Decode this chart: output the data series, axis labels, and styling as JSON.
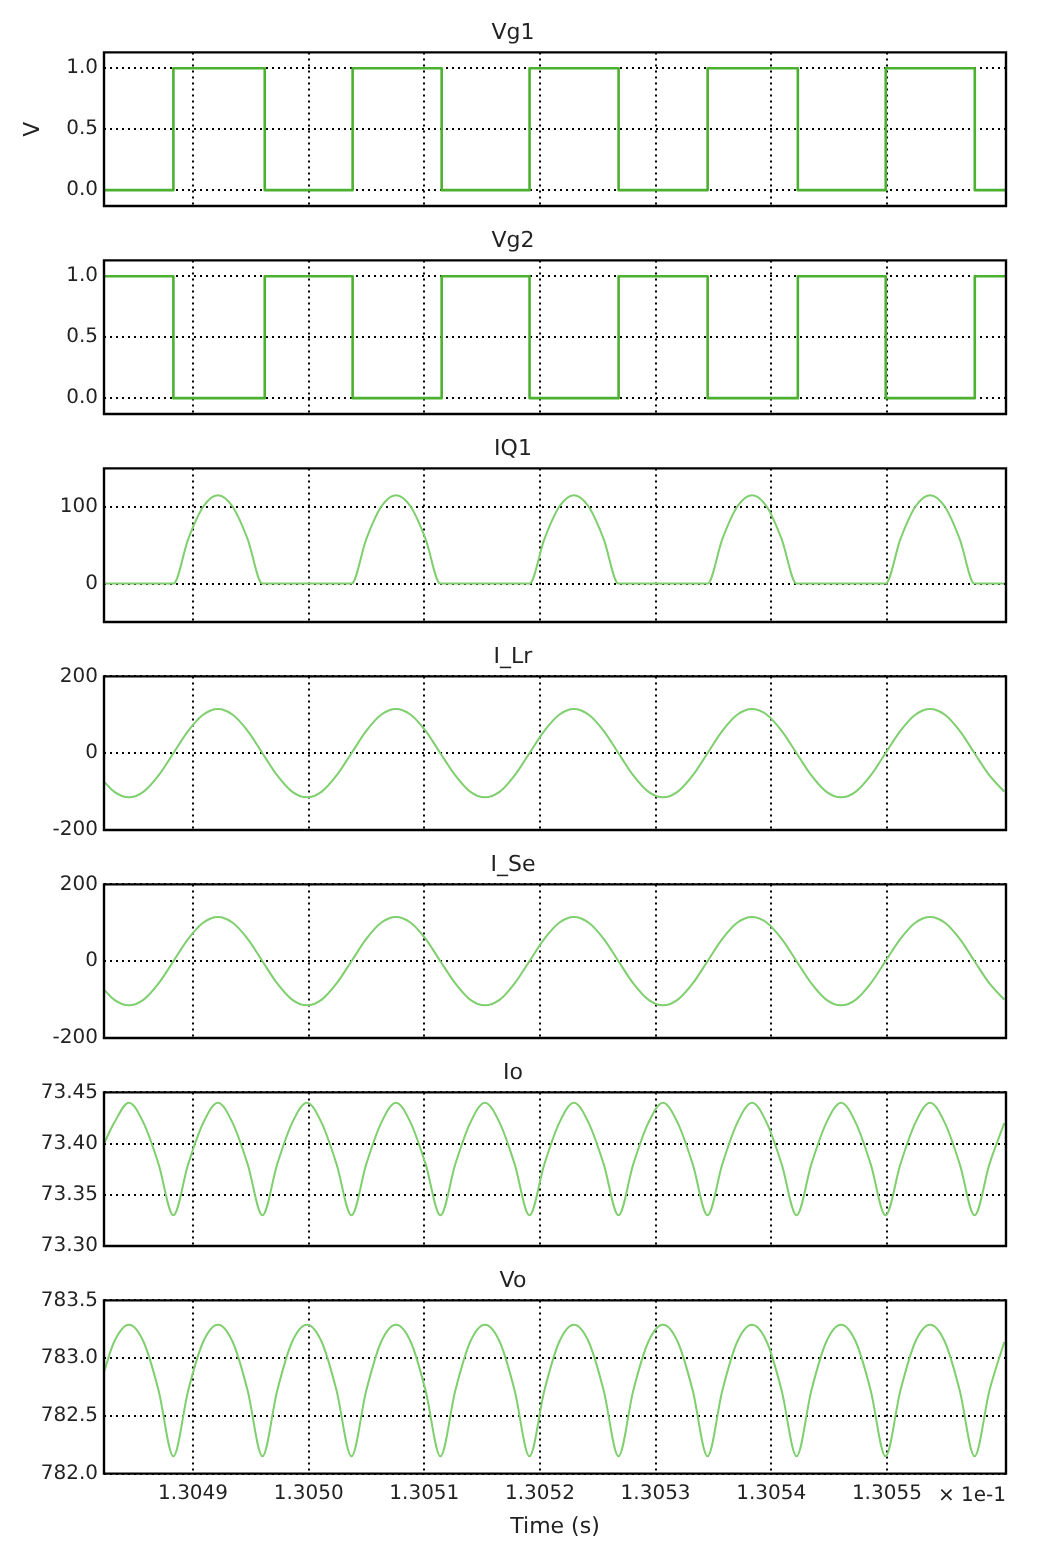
{
  "chart_data": [
    {
      "type": "step",
      "title": "Vg1",
      "ylabel": "V",
      "xlim": [
        1.304823,
        1.305603
      ],
      "xticks": [
        {
          "value": 1.3049,
          "label": null
        },
        {
          "value": 1.305,
          "label": null
        },
        {
          "value": 1.3051,
          "label": null
        },
        {
          "value": 1.3052,
          "label": null
        },
        {
          "value": 1.3053,
          "label": null
        },
        {
          "value": 1.3054,
          "label": null
        },
        {
          "value": 1.3055,
          "label": null
        }
      ],
      "ylim": [
        -0.13,
        1.13
      ],
      "yticks": [
        {
          "value": 0,
          "label": "0.0"
        },
        {
          "value": 0.5,
          "label": "0.5"
        },
        {
          "value": 1,
          "label": "1.0"
        }
      ],
      "grid": true,
      "tick_labels": "y",
      "x": [
        1.304823,
        1.304883,
        1.304962,
        1.305038,
        1.305115,
        1.305191,
        1.305268,
        1.305345,
        1.305423,
        1.305499,
        1.305576,
        1.305603
      ],
      "series": [
        {
          "color": "#4cb030",
          "values": [
            0,
            1,
            0,
            1,
            0,
            1,
            0,
            1,
            0,
            1,
            0,
            0
          ]
        }
      ]
    },
    {
      "type": "step",
      "title": "Vg2",
      "xlim": [
        1.304823,
        1.305603
      ],
      "xticks": [
        {
          "value": 1.3049,
          "label": null
        },
        {
          "value": 1.305,
          "label": null
        },
        {
          "value": 1.3051,
          "label": null
        },
        {
          "value": 1.3052,
          "label": null
        },
        {
          "value": 1.3053,
          "label": null
        },
        {
          "value": 1.3054,
          "label": null
        },
        {
          "value": 1.3055,
          "label": null
        }
      ],
      "ylim": [
        -0.13,
        1.13
      ],
      "yticks": [
        {
          "value": 0,
          "label": "0.0"
        },
        {
          "value": 0.5,
          "label": "0.5"
        },
        {
          "value": 1,
          "label": "1.0"
        }
      ],
      "grid": true,
      "tick_labels": "y",
      "x": [
        1.304823,
        1.304883,
        1.304962,
        1.305038,
        1.305115,
        1.305191,
        1.305268,
        1.305345,
        1.305423,
        1.305499,
        1.305576,
        1.305603
      ],
      "series": [
        {
          "color": "#4cb030",
          "values": [
            1,
            0,
            1,
            0,
            1,
            0,
            1,
            0,
            1,
            0,
            1,
            1
          ]
        }
      ]
    },
    {
      "type": "line",
      "title": "IQ1",
      "xlim": [
        1.304823,
        1.305603
      ],
      "xticks": [
        {
          "value": 1.3049,
          "label": null
        },
        {
          "value": 1.305,
          "label": null
        },
        {
          "value": 1.3051,
          "label": null
        },
        {
          "value": 1.3052,
          "label": null
        },
        {
          "value": 1.3053,
          "label": null
        },
        {
          "value": 1.3054,
          "label": null
        },
        {
          "value": 1.3055,
          "label": null
        }
      ],
      "ylim": [
        -50,
        150
      ],
      "yticks": [
        0,
        100
      ],
      "grid": true,
      "tick_labels": "y",
      "x": [
        1.304823,
        1.3048317,
        1.3048445,
        1.3048573,
        1.3048702,
        1.304883,
        1.3048958,
        1.3049087,
        1.3049215,
        1.3049343,
        1.3049472,
        1.30496,
        1.3049728,
        1.3049856,
        1.3049985,
        1.3050113,
        1.3050241,
        1.305037,
        1.3050498,
        1.3050626,
        1.3050755,
        1.3050883,
        1.3051011,
        1.3051139,
        1.3051268,
        1.3051396,
        1.3051524,
        1.3051653,
        1.3051781,
        1.3051909,
        1.3052038,
        1.3052166,
        1.3052294,
        1.3052422,
        1.3052551,
        1.3052679,
        1.3052807,
        1.3052936,
        1.3053064,
        1.3053192,
        1.3053321,
        1.3053449,
        1.3053577,
        1.3053705,
        1.3053834,
        1.3053962,
        1.305409,
        1.3054219,
        1.3054347,
        1.3054475,
        1.3054604,
        1.3054732,
        1.305486,
        1.3054988,
        1.3055117,
        1.3055245,
        1.3055373,
        1.3055502,
        1.305563,
        1.3055758,
        1.3055887,
        1.3056015
      ],
      "series": [
        {
          "color": "#7fcf6f",
          "values": [
            0,
            0,
            0,
            0,
            0,
            0,
            58,
            100,
            115,
            100,
            58,
            0,
            0,
            0,
            0,
            0,
            0,
            0,
            58,
            100,
            115,
            100,
            58,
            0,
            0,
            0,
            0,
            0,
            0,
            0,
            58,
            100,
            115,
            100,
            58,
            0,
            0,
            0,
            0,
            0,
            0,
            0,
            58,
            100,
            115,
            100,
            58,
            0,
            0,
            0,
            0,
            0,
            0,
            0,
            58,
            100,
            115,
            100,
            58,
            0,
            0,
            0
          ]
        }
      ]
    },
    {
      "type": "line",
      "title": "I_Lr",
      "xlim": [
        1.304823,
        1.305603
      ],
      "xticks": [
        {
          "value": 1.3049,
          "label": null
        },
        {
          "value": 1.305,
          "label": null
        },
        {
          "value": 1.3051,
          "label": null
        },
        {
          "value": 1.3052,
          "label": null
        },
        {
          "value": 1.3053,
          "label": null
        },
        {
          "value": 1.3054,
          "label": null
        },
        {
          "value": 1.3055,
          "label": null
        }
      ],
      "ylim": [
        -200,
        200
      ],
      "yticks": [
        -200,
        0,
        200
      ],
      "grid": true,
      "tick_labels": "y",
      "x": [
        1.304823,
        1.3048317,
        1.3048445,
        1.3048573,
        1.3048702,
        1.304883,
        1.3048958,
        1.3049087,
        1.3049215,
        1.3049343,
        1.3049472,
        1.30496,
        1.3049728,
        1.3049856,
        1.3049985,
        1.3050113,
        1.3050241,
        1.305037,
        1.3050498,
        1.3050626,
        1.3050755,
        1.3050883,
        1.3051011,
        1.3051139,
        1.3051268,
        1.3051396,
        1.3051524,
        1.3051653,
        1.3051781,
        1.3051909,
        1.3052038,
        1.3052166,
        1.3052294,
        1.3052422,
        1.3052551,
        1.3052679,
        1.3052807,
        1.3052936,
        1.3053064,
        1.3053192,
        1.3053321,
        1.3053449,
        1.3053577,
        1.3053705,
        1.3053834,
        1.3053962,
        1.305409,
        1.3054219,
        1.3054347,
        1.3054475,
        1.3054604,
        1.3054732,
        1.305486,
        1.3054988,
        1.3055117,
        1.3055245,
        1.3055373,
        1.3055502,
        1.305563,
        1.3055758,
        1.3055887,
        1.3056015
      ],
      "series": [
        {
          "color": "#7fcf6f",
          "values": [
            -74,
            -100,
            -115,
            -100,
            -58,
            0,
            58,
            100,
            115,
            100,
            58,
            0,
            -58,
            -100,
            -115,
            -100,
            -58,
            0,
            58,
            100,
            115,
            100,
            58,
            0,
            -58,
            -100,
            -115,
            -100,
            -58,
            0,
            58,
            100,
            115,
            100,
            58,
            0,
            -58,
            -100,
            -115,
            -100,
            -58,
            0,
            58,
            100,
            115,
            100,
            58,
            0,
            -58,
            -100,
            -115,
            -100,
            -58,
            0,
            58,
            100,
            115,
            100,
            58,
            0,
            -58,
            -100
          ]
        }
      ]
    },
    {
      "type": "line",
      "title": "I_Se",
      "xlim": [
        1.304823,
        1.305603
      ],
      "xticks": [
        {
          "value": 1.3049,
          "label": null
        },
        {
          "value": 1.305,
          "label": null
        },
        {
          "value": 1.3051,
          "label": null
        },
        {
          "value": 1.3052,
          "label": null
        },
        {
          "value": 1.3053,
          "label": null
        },
        {
          "value": 1.3054,
          "label": null
        },
        {
          "value": 1.3055,
          "label": null
        }
      ],
      "ylim": [
        -200,
        200
      ],
      "yticks": [
        -200,
        0,
        200
      ],
      "grid": true,
      "tick_labels": "y",
      "x": [
        1.304823,
        1.3048317,
        1.3048445,
        1.3048573,
        1.3048702,
        1.304883,
        1.3048958,
        1.3049087,
        1.3049215,
        1.3049343,
        1.3049472,
        1.30496,
        1.3049728,
        1.3049856,
        1.3049985,
        1.3050113,
        1.3050241,
        1.305037,
        1.3050498,
        1.3050626,
        1.3050755,
        1.3050883,
        1.3051011,
        1.3051139,
        1.3051268,
        1.3051396,
        1.3051524,
        1.3051653,
        1.3051781,
        1.3051909,
        1.3052038,
        1.3052166,
        1.3052294,
        1.3052422,
        1.3052551,
        1.3052679,
        1.3052807,
        1.3052936,
        1.3053064,
        1.3053192,
        1.3053321,
        1.3053449,
        1.3053577,
        1.3053705,
        1.3053834,
        1.3053962,
        1.305409,
        1.3054219,
        1.3054347,
        1.3054475,
        1.3054604,
        1.3054732,
        1.305486,
        1.3054988,
        1.3055117,
        1.3055245,
        1.3055373,
        1.3055502,
        1.305563,
        1.3055758,
        1.3055887,
        1.3056015
      ],
      "series": [
        {
          "color": "#7fcf6f",
          "values": [
            -74,
            -100,
            -115,
            -100,
            -58,
            0,
            58,
            100,
            115,
            100,
            58,
            0,
            -58,
            -100,
            -115,
            -100,
            -58,
            0,
            58,
            100,
            115,
            100,
            58,
            0,
            -58,
            -100,
            -115,
            -100,
            -58,
            0,
            58,
            100,
            115,
            100,
            58,
            0,
            -58,
            -100,
            -115,
            -100,
            -58,
            0,
            58,
            100,
            115,
            100,
            58,
            0,
            -58,
            -100,
            -115,
            -100,
            -58,
            0,
            58,
            100,
            115,
            100,
            58,
            0,
            -58,
            -100
          ]
        }
      ]
    },
    {
      "type": "line",
      "title": "Io",
      "xlim": [
        1.304823,
        1.305603
      ],
      "xticks": [
        {
          "value": 1.3049,
          "label": null
        },
        {
          "value": 1.305,
          "label": null
        },
        {
          "value": 1.3051,
          "label": null
        },
        {
          "value": 1.3052,
          "label": null
        },
        {
          "value": 1.3053,
          "label": null
        },
        {
          "value": 1.3054,
          "label": null
        },
        {
          "value": 1.3055,
          "label": null
        }
      ],
      "ylim": [
        73.3,
        73.45
      ],
      "yticks": [
        {
          "value": 73.3,
          "label": "73.30"
        },
        {
          "value": 73.35,
          "label": "73.35"
        },
        {
          "value": 73.4,
          "label": "73.40"
        },
        73.45
      ],
      "grid": true,
      "tick_labels": "y",
      "x": [
        1.304823,
        1.3048317,
        1.3048445,
        1.3048573,
        1.3048702,
        1.304883,
        1.3048958,
        1.3049087,
        1.3049215,
        1.3049343,
        1.3049472,
        1.30496,
        1.3049728,
        1.3049856,
        1.3049985,
        1.3050113,
        1.3050241,
        1.305037,
        1.3050498,
        1.3050626,
        1.3050755,
        1.3050883,
        1.3051011,
        1.3051139,
        1.3051268,
        1.3051396,
        1.3051524,
        1.3051653,
        1.3051781,
        1.3051909,
        1.3052038,
        1.3052166,
        1.3052294,
        1.3052422,
        1.3052551,
        1.3052679,
        1.3052807,
        1.3052936,
        1.3053064,
        1.3053192,
        1.3053321,
        1.3053449,
        1.3053577,
        1.3053705,
        1.3053834,
        1.3053962,
        1.305409,
        1.3054219,
        1.3054347,
        1.3054475,
        1.3054604,
        1.3054732,
        1.305486,
        1.3054988,
        1.3055117,
        1.3055245,
        1.3055373,
        1.3055502,
        1.305563,
        1.3055758,
        1.3055887,
        1.3056015
      ],
      "series": [
        {
          "color": "#7fcf6f",
          "values": [
            73.4,
            73.42,
            73.44,
            73.42,
            73.38,
            73.33,
            73.38,
            73.42,
            73.44,
            73.42,
            73.38,
            73.33,
            73.38,
            73.42,
            73.44,
            73.42,
            73.38,
            73.33,
            73.38,
            73.42,
            73.44,
            73.42,
            73.38,
            73.33,
            73.38,
            73.42,
            73.44,
            73.42,
            73.38,
            73.33,
            73.38,
            73.42,
            73.44,
            73.42,
            73.38,
            73.33,
            73.38,
            73.42,
            73.44,
            73.42,
            73.38,
            73.33,
            73.38,
            73.42,
            73.44,
            73.42,
            73.38,
            73.33,
            73.38,
            73.42,
            73.44,
            73.42,
            73.38,
            73.33,
            73.38,
            73.42,
            73.44,
            73.42,
            73.38,
            73.33,
            73.38,
            73.42
          ]
        }
      ]
    },
    {
      "type": "line",
      "title": "Vo",
      "xlabel": "Time (s)",
      "annotations": [
        "× 1e-1"
      ],
      "xlim": [
        1.304823,
        1.305603
      ],
      "xticks": [
        1.3049,
        {
          "value": 1.305,
          "label": "1.3050"
        },
        1.3051,
        1.3052,
        1.3053,
        1.3054,
        1.3055
      ],
      "ylim": [
        782,
        783.5
      ],
      "yticks": [
        {
          "value": 782,
          "label": "782.0"
        },
        782.5,
        {
          "value": 783,
          "label": "783.0"
        },
        783.5
      ],
      "grid": true,
      "x": [
        1.304823,
        1.3048317,
        1.3048445,
        1.3048573,
        1.3048702,
        1.304883,
        1.3048958,
        1.3049087,
        1.3049215,
        1.3049343,
        1.3049472,
        1.30496,
        1.3049728,
        1.3049856,
        1.3049985,
        1.3050113,
        1.3050241,
        1.305037,
        1.3050498,
        1.3050626,
        1.3050755,
        1.3050883,
        1.3051011,
        1.3051139,
        1.3051268,
        1.3051396,
        1.3051524,
        1.3051653,
        1.3051781,
        1.3051909,
        1.3052038,
        1.3052166,
        1.3052294,
        1.3052422,
        1.3052551,
        1.3052679,
        1.3052807,
        1.3052936,
        1.3053064,
        1.3053192,
        1.3053321,
        1.3053449,
        1.3053577,
        1.3053705,
        1.3053834,
        1.3053962,
        1.305409,
        1.3054219,
        1.3054347,
        1.3054475,
        1.3054604,
        1.3054732,
        1.305486,
        1.3054988,
        1.3055117,
        1.3055245,
        1.3055373,
        1.3055502,
        1.305563,
        1.3055758,
        1.3055887,
        1.3056015
      ],
      "series": [
        {
          "color": "#7fcf6f",
          "values": [
            782.88,
            783.14,
            783.29,
            783.14,
            782.72,
            782.15,
            782.72,
            783.14,
            783.29,
            783.14,
            782.72,
            782.15,
            782.72,
            783.14,
            783.29,
            783.14,
            782.72,
            782.15,
            782.72,
            783.14,
            783.29,
            783.14,
            782.72,
            782.15,
            782.72,
            783.14,
            783.29,
            783.14,
            782.72,
            782.15,
            782.72,
            783.14,
            783.29,
            783.14,
            782.72,
            782.15,
            782.72,
            783.14,
            783.29,
            783.14,
            782.72,
            782.15,
            782.72,
            783.14,
            783.29,
            783.14,
            782.72,
            782.15,
            782.72,
            783.14,
            783.29,
            783.14,
            782.72,
            782.15,
            782.72,
            783.14,
            783.29,
            783.14,
            782.72,
            782.15,
            782.72,
            783.14
          ]
        }
      ]
    }
  ]
}
